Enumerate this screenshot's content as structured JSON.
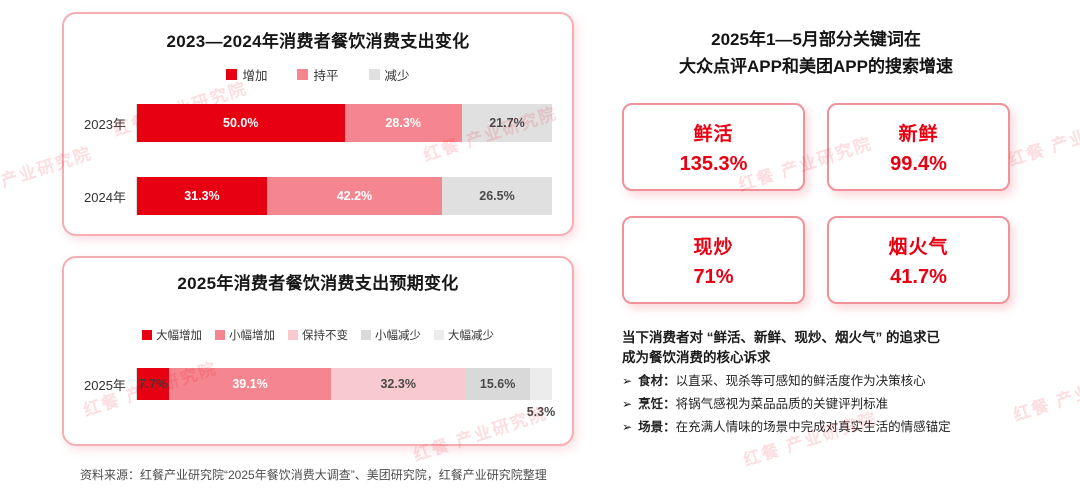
{
  "watermark": {
    "text": "红餐 产业研究院"
  },
  "chart_data": [
    {
      "type": "bar",
      "orientation": "horizontal",
      "stacked": true,
      "title": "2023—2024年消费者餐饮消费支出变化",
      "categories": [
        "2023年",
        "2024年"
      ],
      "unit": "%",
      "xlim": [
        0,
        100
      ],
      "series": [
        {
          "name": "增加",
          "color": "#e60012",
          "label_color": "#ffffff",
          "values": [
            50.0,
            31.3
          ]
        },
        {
          "name": "持平",
          "color": "#f5868f",
          "label_color": "#ffffff",
          "values": [
            28.3,
            42.2
          ]
        },
        {
          "name": "减少",
          "color": "#e0e0e0",
          "label_color": "#4a4a4a",
          "values": [
            21.7,
            26.5
          ]
        }
      ]
    },
    {
      "type": "bar",
      "orientation": "horizontal",
      "stacked": true,
      "title": "2025年消费者餐饮消费支出预期变化",
      "categories": [
        "2025年"
      ],
      "unit": "%",
      "xlim": [
        0,
        100
      ],
      "series": [
        {
          "name": "大幅增加",
          "color": "#e60012",
          "label_color": "#3a3a3a",
          "values": [
            7.7
          ]
        },
        {
          "name": "小幅增加",
          "color": "#f5868f",
          "label_color": "#ffffff",
          "values": [
            39.1
          ]
        },
        {
          "name": "保持不变",
          "color": "#f8c9ce",
          "label_color": "#4a4a4a",
          "values": [
            32.3
          ]
        },
        {
          "name": "小幅减少",
          "color": "#d9d9d9",
          "label_color": "#4a4a4a",
          "values": [
            15.6
          ]
        },
        {
          "name": "大幅减少",
          "color": "#ececec",
          "label_color": "#4a4a4a",
          "label_below": true,
          "values": [
            5.3
          ]
        }
      ]
    }
  ],
  "right_panel": {
    "title_lines": [
      "2025年1—5月部分关键词在",
      "大众点评APP和美团APP的搜索增速"
    ],
    "keywords": [
      {
        "name": "鲜活",
        "value": "135.3%"
      },
      {
        "name": "新鲜",
        "value": "99.4%"
      },
      {
        "name": "现炒",
        "value": "71%"
      },
      {
        "name": "烟火气",
        "value": "41.7%"
      }
    ],
    "summary_lines": [
      "当下消费者对 “鲜活、新鲜、现炒、烟火气” 的追求已",
      "成为餐饮消费的核心诉求"
    ],
    "bullets": [
      {
        "marker": "➢",
        "label": "食材：",
        "text": "以直采、现杀等可感知的鲜活度作为决策核心"
      },
      {
        "marker": "➢",
        "label": "烹饪：",
        "text": "将锅气感视为菜品品质的关键评判标准"
      },
      {
        "marker": "➢",
        "label": "场景：",
        "text": "在充满人情味的场景中完成对真实生活的情感锚定"
      }
    ]
  },
  "footer": {
    "text": "资料来源：红餐产业研究院“2025年餐饮消费大调查”、美团研究院，红餐产业研究院整理"
  }
}
